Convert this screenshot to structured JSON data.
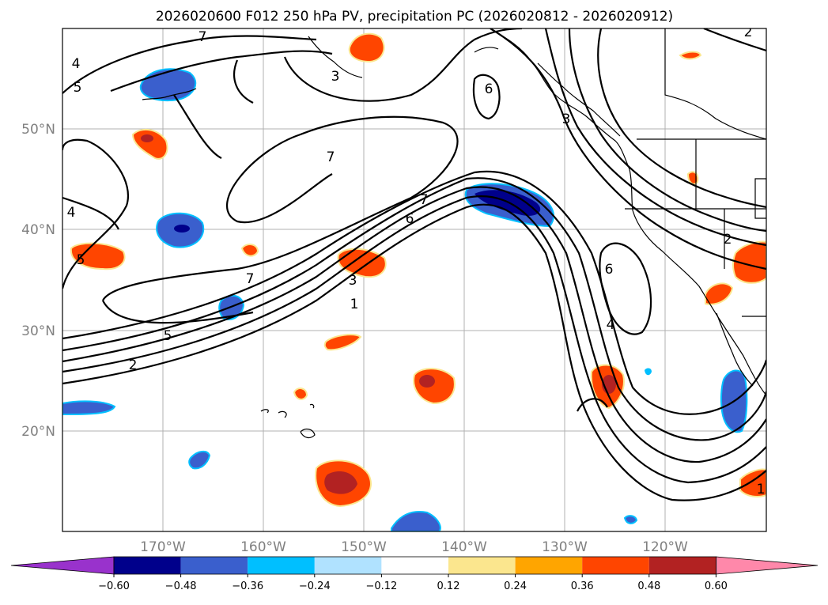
{
  "title": "2026020600 F012 250 hPa PV, precipitation PC (2026020812 - 2026020912)",
  "map": {
    "lon_range": [
      -180,
      -110
    ],
    "lat_range": [
      10,
      60
    ],
    "lat_labels": [
      "50°N",
      "40°N",
      "30°N",
      "20°N"
    ],
    "lon_labels": [
      "170°W",
      "160°W",
      "150°W",
      "140°W",
      "130°W",
      "120°W"
    ],
    "contour_labels": [
      "7",
      "4",
      "5",
      "3",
      "6",
      "3",
      "7",
      "4",
      "5",
      "7",
      "6",
      "7",
      "3",
      "1",
      "5",
      "2",
      "6",
      "4",
      "2",
      "1",
      "2"
    ]
  },
  "colorbar": {
    "ticks": [
      "−0.60",
      "−0.48",
      "−0.36",
      "−0.24",
      "−0.12",
      "0.12",
      "0.24",
      "0.36",
      "0.48",
      "0.60"
    ],
    "colors": [
      "#9932cc",
      "#00008b",
      "#3a5fcd",
      "#00bfff",
      "#b0e2ff",
      "#ffffff",
      "#fbe68e",
      "#ffa500",
      "#ff4500",
      "#b22222",
      "#ff88aa"
    ]
  },
  "palette": {
    "dark_blue": "#00008b",
    "mid_blue": "#3a5fcd",
    "sky": "#00bfff",
    "light_sky": "#b0e2ff",
    "yellow": "#fbe68e",
    "orange": "#ffa500",
    "red_orange": "#ff4500",
    "dark_red": "#b22222",
    "grid": "#b0b0b0",
    "coast": "#000000"
  }
}
